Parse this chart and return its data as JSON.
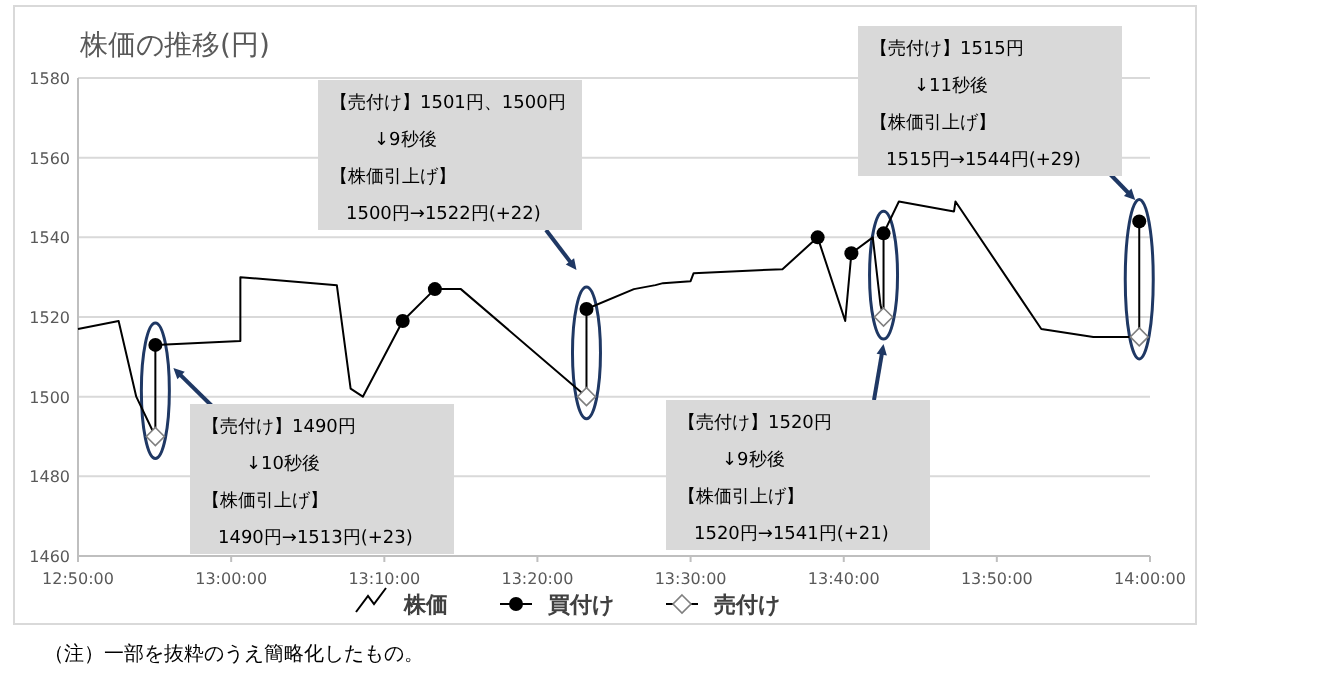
{
  "chart_data": {
    "type": "line",
    "title": "株価の推移(円)",
    "xlim": [
      12.8333,
      14.0
    ],
    "xticks": [
      {
        "value": 12.8333,
        "label": "12:50:00"
      },
      {
        "value": 13.0,
        "label": "13:00:00"
      },
      {
        "value": 13.1667,
        "label": "13:10:00"
      },
      {
        "value": 13.3333,
        "label": "13:20:00"
      },
      {
        "value": 13.5,
        "label": "13:30:00"
      },
      {
        "value": 13.6667,
        "label": "13:40:00"
      },
      {
        "value": 13.8333,
        "label": "13:50:00"
      },
      {
        "value": 14.0,
        "label": "14:00:00"
      }
    ],
    "ylim": [
      1460,
      1580
    ],
    "yticks": [
      1460,
      1480,
      1500,
      1520,
      1540,
      1560,
      1580
    ],
    "grid": "y",
    "legend": "bottom",
    "series": [
      {
        "name": "株価",
        "type": "line",
        "color": "#000000",
        "marker": "none",
        "x": [
          12.8333,
          12.8775,
          12.8967,
          12.9175,
          12.9175,
          13.01,
          13.01,
          13.115,
          13.13,
          13.1433,
          13.1867,
          13.2217,
          13.25,
          13.3867,
          13.3867,
          13.4383,
          13.4617,
          13.47,
          13.5,
          13.5033,
          13.6,
          13.6383,
          13.6683,
          13.675,
          13.6983,
          13.7067,
          13.71,
          13.71,
          13.7267,
          13.7867,
          13.7883,
          13.8817,
          13.9383,
          13.9883,
          13.9883
        ],
        "values": [
          1517,
          1519,
          1500,
          1490,
          1513,
          1514,
          1530,
          1528,
          1502,
          1500,
          1519,
          1527,
          1527,
          1500,
          1522,
          1527,
          1528,
          1528.5,
          1529,
          1531,
          1532,
          1540,
          1519,
          1536,
          1540,
          1523,
          1520,
          1541,
          1549,
          1546.5,
          1549,
          1517,
          1515,
          1515,
          1544
        ]
      },
      {
        "name": "買付け",
        "type": "scatter",
        "color": "#000000",
        "marker": "circle",
        "x": [
          12.9175,
          13.1867,
          13.2217,
          13.3867,
          13.6383,
          13.675,
          13.71,
          13.9883
        ],
        "values": [
          1513,
          1519,
          1527,
          1522,
          1540,
          1536,
          1541,
          1544
        ]
      },
      {
        "name": "売付け",
        "type": "scatter",
        "color": "#ffffff",
        "marker": "diamond",
        "x": [
          12.9175,
          13.3867,
          13.71,
          13.9883
        ],
        "values": [
          1490,
          1500,
          1520,
          1515
        ]
      }
    ],
    "annotations": [
      "【売付け】1490円",
      "↓10秒後",
      "【株価引上げ】",
      "1490円→1513円(+23)",
      "【売付け】1501円、1500円",
      "↓9秒後",
      "【株価引上げ】",
      "1500円→1522円(+22)",
      "【売付け】1520円",
      "↓9秒後",
      "【株価引上げ】",
      "1520円→1541円(+21)",
      "【売付け】1515円",
      "↓11秒後",
      "【株価引上げ】",
      "1515円→1544円(+29)",
      "（注）一部を抜粋のうえ簡略化したもの。"
    ]
  }
}
